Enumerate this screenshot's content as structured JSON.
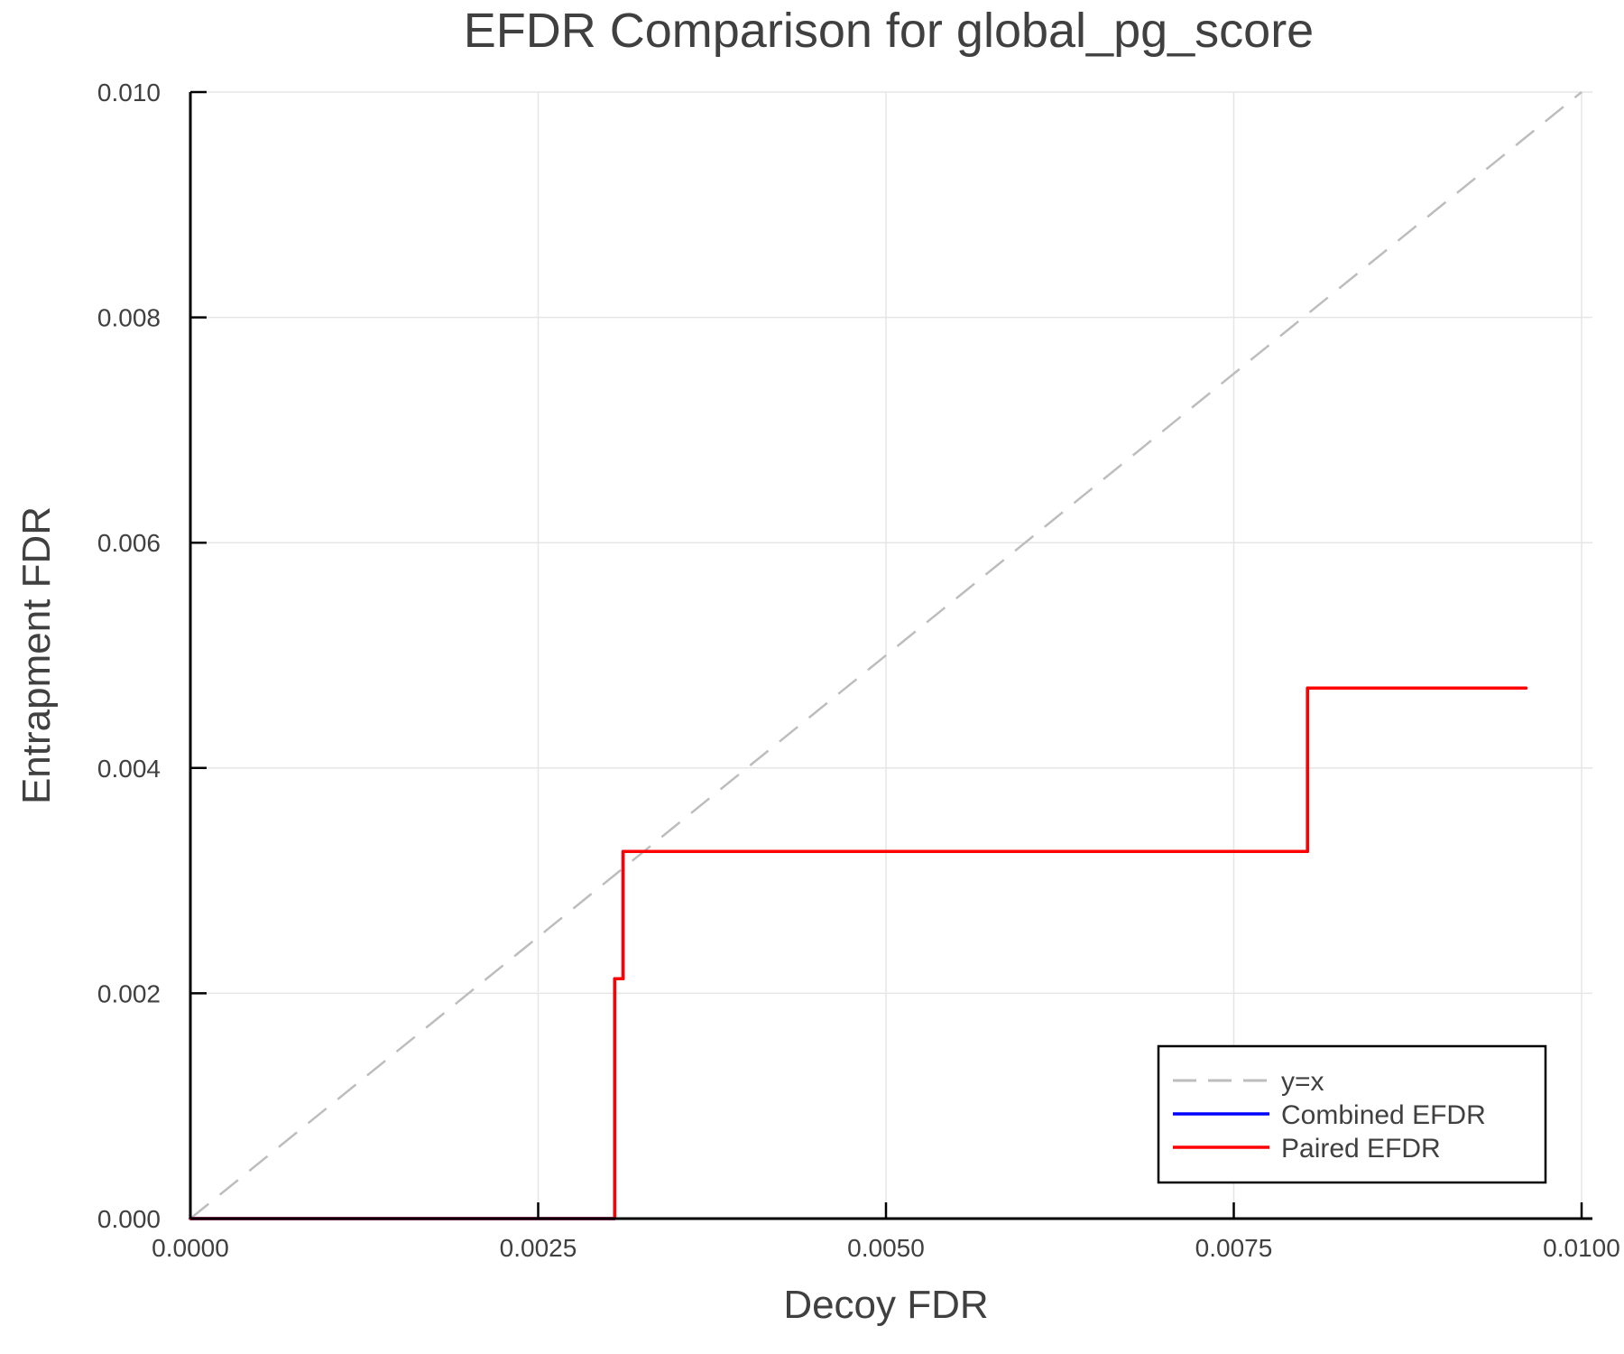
{
  "chart_data": {
    "type": "line",
    "title": "EFDR Comparison for global_pg_score",
    "xlabel": "Decoy FDR",
    "ylabel": "Entrapment FDR",
    "xlim": [
      0.0,
      0.01
    ],
    "ylim": [
      0.0,
      0.01
    ],
    "xticks": [
      "0.0000",
      "0.0025",
      "0.0050",
      "0.0075",
      "0.0100"
    ],
    "xtick_values": [
      0.0,
      0.0025,
      0.005,
      0.0075,
      0.01
    ],
    "yticks": [
      "0.000",
      "0.002",
      "0.004",
      "0.006",
      "0.008",
      "0.010"
    ],
    "ytick_values": [
      0.0,
      0.002,
      0.004,
      0.006,
      0.008,
      0.01
    ],
    "grid": true,
    "legend_position": "bottom-right",
    "series": [
      {
        "name": "y=x",
        "color": "#bdbdbd",
        "style": "dashed",
        "x": [
          0.0,
          0.01
        ],
        "y": [
          0.0,
          0.01
        ]
      },
      {
        "name": "Combined EFDR",
        "color": "#0000ff",
        "style": "solid-step",
        "x": [
          0.0,
          0.00305,
          0.00305,
          0.00311,
          0.00311,
          0.00803,
          0.00803,
          0.0096
        ],
        "y": [
          0.0,
          0.0,
          0.00213,
          0.00213,
          0.00326,
          0.00326,
          0.00471,
          0.00471
        ]
      },
      {
        "name": "Paired EFDR",
        "color": "#ff0000",
        "style": "solid-step",
        "x": [
          0.0,
          0.00305,
          0.00305,
          0.00311,
          0.00311,
          0.00803,
          0.00803,
          0.0096
        ],
        "y": [
          0.0,
          0.0,
          0.00213,
          0.00213,
          0.00326,
          0.00326,
          0.00471,
          0.00471
        ]
      }
    ]
  },
  "legend": {
    "items": [
      "y=x",
      "Combined EFDR",
      "Paired EFDR"
    ]
  }
}
